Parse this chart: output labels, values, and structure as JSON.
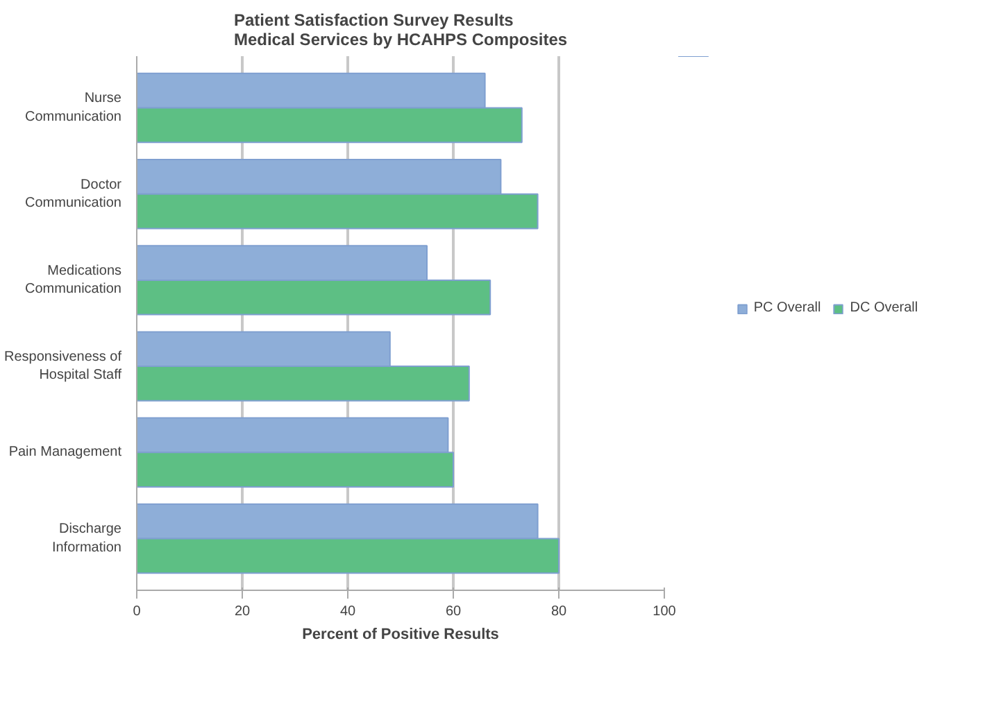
{
  "chart_data": {
    "type": "bar",
    "orientation": "horizontal",
    "title": "Patient Satisfaction Survey Results\nMedical Services by HCAHPS Composites",
    "xlabel": "Percent of Positive Results",
    "categories": [
      "Nurse\nCommunication",
      "Doctor\nCommunication",
      "Medications\nCommunication",
      "Responsiveness of\nHospital Staff",
      "Pain Management",
      "Discharge\nInformation"
    ],
    "series": [
      {
        "name": "PC Overall",
        "color": "#8eaed8",
        "values": [
          66,
          69,
          55,
          48,
          59,
          76
        ]
      },
      {
        "name": "DC Overall",
        "color": "#5dbf84",
        "values": [
          73,
          76,
          67,
          63,
          60,
          80
        ]
      }
    ],
    "xlim": [
      0,
      100
    ],
    "xticks": [
      0,
      20,
      40,
      60,
      80,
      100
    ],
    "grid": "x",
    "legend": "right"
  }
}
